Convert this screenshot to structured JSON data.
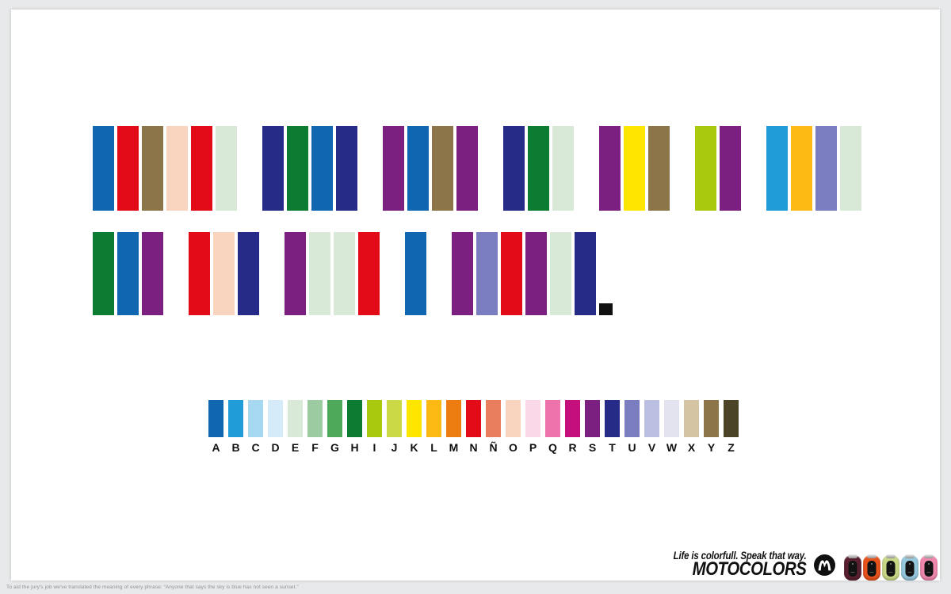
{
  "page": {
    "background_color": "#e7e9ea",
    "canvas_color": "#ffffff"
  },
  "colors_by_letter": {
    "A": "#1166b1",
    "B": "#209cd8",
    "C": "#a6d8f2",
    "D": "#d5ebf9",
    "E": "#d8e9d8",
    "F": "#9ccaa1",
    "G": "#4ea95a",
    "H": "#0c7c33",
    "I": "#a9c90f",
    "J": "#ccd947",
    "K": "#fee600",
    "L": "#fcb813",
    "M": "#ee7d11",
    "N": "#e30b17",
    "Ñ": "#e87e5d",
    "O": "#f9d5bf",
    "P": "#fbd8e7",
    "Q": "#ee72ac",
    "R": "#c40f7d",
    "S": "#7b1f80",
    "T": "#262b87",
    "U": "#7a7ec1",
    "V": "#bbbfe2",
    "W": "#e2e3ee",
    "X": "#d4c4a4",
    "Y": "#8b7549",
    "Z": "#4c4427"
  },
  "phrase": {
    "rows": [
      [
        "ANYONE",
        "THAT",
        "SAYS",
        "THE",
        "SKY",
        "IS",
        "BLUE"
      ],
      [
        "HAS",
        "NOT",
        "SEEN",
        "A",
        "SUNSET"
      ]
    ],
    "period": true,
    "period_color": "#101010"
  },
  "legend": {
    "letters": [
      "A",
      "B",
      "C",
      "D",
      "E",
      "F",
      "G",
      "H",
      "I",
      "J",
      "K",
      "L",
      "M",
      "N",
      "Ñ",
      "O",
      "P",
      "Q",
      "R",
      "S",
      "T",
      "U",
      "V",
      "W",
      "X",
      "Y",
      "Z"
    ]
  },
  "footer": {
    "tagline": "Life is colorfull. Speak that way.",
    "brand": "MOTOCOLORS",
    "logo_icon": "motorola-logo",
    "phones": [
      {
        "name": "burgundy",
        "color": "#5a2130"
      },
      {
        "name": "orange",
        "color": "#e8531c"
      },
      {
        "name": "green",
        "color": "#c7d987"
      },
      {
        "name": "blue",
        "color": "#96c8dd"
      },
      {
        "name": "pink",
        "color": "#f087ae"
      }
    ]
  },
  "footnote": "To aid the jury's job we've translated the meaning of every phrase: “Anyone that says the sky is blue has not seen a sunset.”"
}
